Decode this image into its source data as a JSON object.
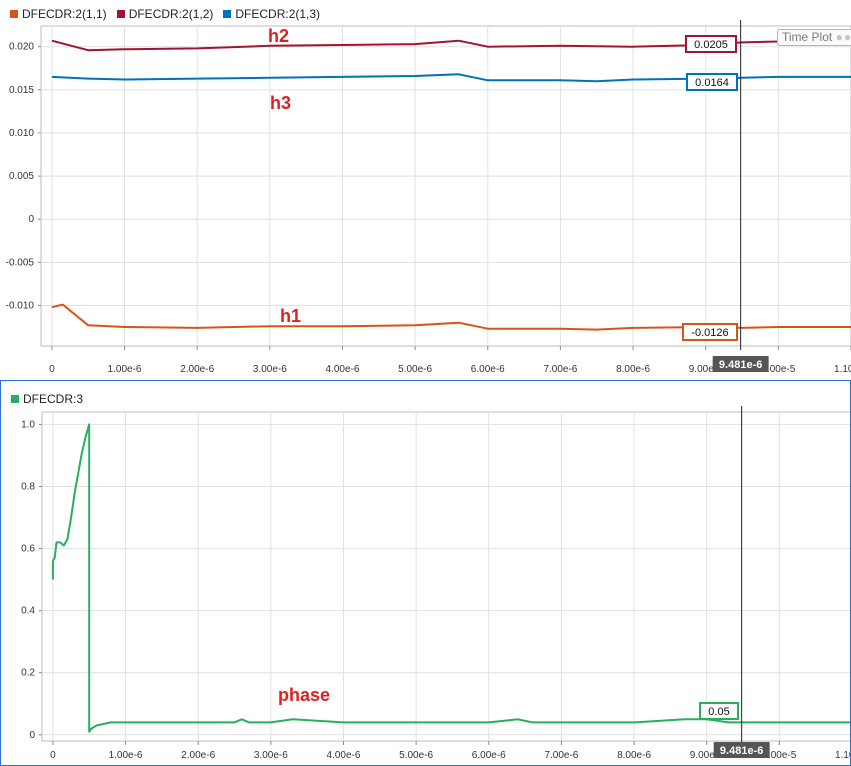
{
  "top_panel": {
    "legend": [
      {
        "label": "DFECDR:2(1,1)",
        "color": "#d95319"
      },
      {
        "label": "DFECDR:2(1,2)",
        "color": "#a2142f"
      },
      {
        "label": "DFECDR:2(1,3)",
        "color": "#0072bd"
      }
    ],
    "annotations": {
      "h1": "h1",
      "h2": "h2",
      "h3": "h3"
    },
    "datatips": {
      "h2": "0.0205",
      "h3": "0.0164",
      "h1": "-0.0126"
    },
    "cursor_label": "9.481e-6",
    "badge_label": "Time Plot"
  },
  "bottom_panel": {
    "legend": [
      {
        "label": "DFECDR:3",
        "color": "#27ae60"
      }
    ],
    "annotations": {
      "phase": "phase"
    },
    "datatips": {
      "phase": "0.05"
    },
    "cursor_label": "9.481e-6"
  },
  "chart_data": [
    {
      "type": "line",
      "xlabel": "",
      "ylabel": "",
      "xlim": [
        -1.5e-07,
        1.1e-05
      ],
      "ylim": [
        -0.0147,
        0.0224
      ],
      "xticks": [
        0,
        1e-06,
        2e-06,
        3e-06,
        4e-06,
        5e-06,
        6e-06,
        7e-06,
        8e-06,
        9e-06,
        1e-05,
        1.1e-05
      ],
      "xtick_labels": [
        "0",
        "1.00e-6",
        "2.00e-6",
        "3.00e-6",
        "4.00e-6",
        "5.00e-6",
        "6.00e-6",
        "7.00e-6",
        "8.00e-6",
        "9.00e-6",
        "1.00e-5",
        "1.10e-5"
      ],
      "yticks": [
        0.02,
        0.015,
        0.01,
        0.005,
        0,
        -0.005,
        -0.01
      ],
      "ytick_labels": [
        "0.020",
        "0.015",
        "0.010",
        "0.005",
        "0",
        "-0.005",
        "-0.010"
      ],
      "grid": true,
      "legend_position": "top-left",
      "cursor_x": 9.481e-06,
      "series": [
        {
          "name": "DFECDR:2(1,1)",
          "color": "#d95319",
          "x": [
            0,
            1.5e-07,
            5e-07,
            1e-06,
            2e-06,
            3e-06,
            4e-06,
            5e-06,
            5.6e-06,
            6e-06,
            7e-06,
            7.5e-06,
            8e-06,
            9e-06,
            9.5e-06,
            1e-05,
            1.1e-05
          ],
          "y": [
            -0.0102,
            -0.0099,
            -0.0123,
            -0.0125,
            -0.0126,
            -0.0124,
            -0.0124,
            -0.0123,
            -0.012,
            -0.0127,
            -0.0127,
            -0.0128,
            -0.0126,
            -0.0125,
            -0.0126,
            -0.0125,
            -0.0125
          ]
        },
        {
          "name": "DFECDR:2(1,2)",
          "color": "#a2142f",
          "x": [
            0,
            5e-07,
            1e-06,
            2e-06,
            3e-06,
            4e-06,
            5e-06,
            5.6e-06,
            6e-06,
            7e-06,
            8e-06,
            9e-06,
            9.5e-06,
            1e-05,
            1.1e-05
          ],
          "y": [
            0.0207,
            0.0196,
            0.0197,
            0.0198,
            0.0201,
            0.0202,
            0.0203,
            0.0207,
            0.02,
            0.0201,
            0.02,
            0.0202,
            0.0205,
            0.0206,
            0.0206
          ]
        },
        {
          "name": "DFECDR:2(1,3)",
          "color": "#0072bd",
          "x": [
            0,
            5e-07,
            1e-06,
            2e-06,
            3e-06,
            4e-06,
            5e-06,
            5.6e-06,
            6e-06,
            7e-06,
            7.5e-06,
            8e-06,
            9e-06,
            9.5e-06,
            1e-05,
            1.1e-05
          ],
          "y": [
            0.0165,
            0.0163,
            0.0162,
            0.0163,
            0.0164,
            0.0165,
            0.0166,
            0.0168,
            0.0161,
            0.0161,
            0.016,
            0.0162,
            0.0163,
            0.0164,
            0.0165,
            0.0165
          ]
        }
      ]
    },
    {
      "type": "line",
      "xlabel": "",
      "ylabel": "",
      "xlim": [
        -1.5e-07,
        1.1e-05
      ],
      "ylim": [
        -0.02,
        1.04
      ],
      "xticks": [
        0,
        1e-06,
        2e-06,
        3e-06,
        4e-06,
        5e-06,
        6e-06,
        7e-06,
        8e-06,
        9e-06,
        1e-05,
        1.1e-05
      ],
      "xtick_labels": [
        "0",
        "1.00e-6",
        "2.00e-6",
        "3.00e-6",
        "4.00e-6",
        "5.00e-6",
        "6.00e-6",
        "7.00e-6",
        "8.00e-6",
        "9.00e-6",
        "1.00e-5",
        "1.10e-5"
      ],
      "yticks": [
        1.0,
        0.8,
        0.6,
        0.4,
        0.2,
        0
      ],
      "ytick_labels": [
        "1.0",
        "0.8",
        "0.6",
        "0.4",
        "0.2",
        "0"
      ],
      "grid": true,
      "legend_position": "top-left",
      "cursor_x": 9.481e-06,
      "series": [
        {
          "name": "DFECDR:3",
          "color": "#27ae60",
          "x": [
            0,
            0,
            2.5e-08,
            5e-08,
            1e-07,
            1.5e-07,
            2e-07,
            2.5e-07,
            3e-07,
            4e-07,
            4.5e-07,
            5e-07,
            5e-07,
            5.3e-07,
            6e-07,
            8e-07,
            1e-06,
            2e-06,
            2.5e-06,
            2.6e-06,
            2.7e-06,
            3e-06,
            3.3e-06,
            4e-06,
            5e-06,
            6e-06,
            6.4e-06,
            6.6e-06,
            7e-06,
            8e-06,
            8.7e-06,
            9e-06,
            9.3e-06,
            1e-05,
            1.1e-05
          ],
          "y": [
            0.5,
            0.56,
            0.57,
            0.62,
            0.62,
            0.61,
            0.63,
            0.7,
            0.78,
            0.91,
            0.96,
            1.0,
            0.01,
            0.02,
            0.03,
            0.04,
            0.04,
            0.04,
            0.04,
            0.05,
            0.04,
            0.04,
            0.05,
            0.04,
            0.04,
            0.04,
            0.05,
            0.04,
            0.04,
            0.04,
            0.05,
            0.05,
            0.04,
            0.04,
            0.04
          ]
        }
      ]
    }
  ]
}
